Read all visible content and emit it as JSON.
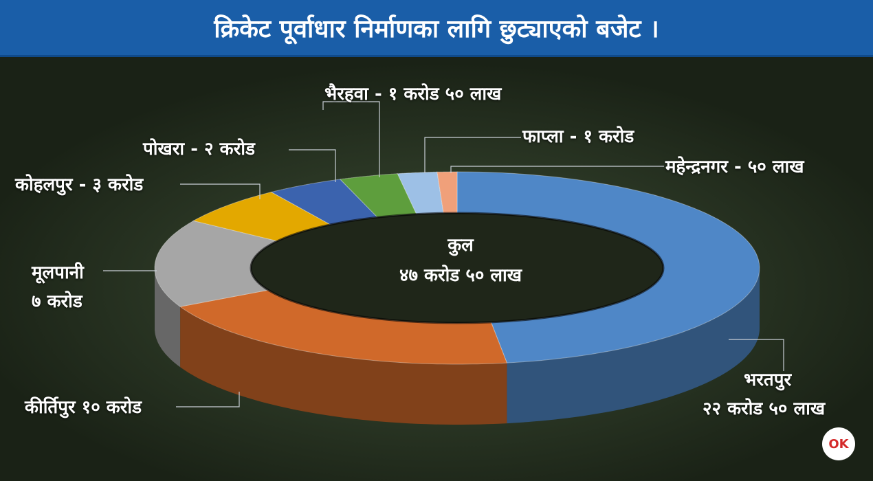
{
  "header": {
    "title": "क्रिकेट पूर्वाधार निर्माणका लागि छुट्याएको बजेट ।"
  },
  "center": {
    "line1": "कुल",
    "line2": "४७ करोड ५० लाख"
  },
  "logo": {
    "text": "OK"
  },
  "chart_data": {
    "type": "pie",
    "variant": "donut-3d",
    "title": "क्रिकेट पूर्वाधार निर्माणका लागि छुट्याएको बजेट ।",
    "total_label": "कुल ४७ करोड ५० लाख",
    "unit": "लाख",
    "slices": [
      {
        "label": "भरतपुर",
        "value_text": "२२ करोड ५० लाख",
        "value": 2250,
        "color": "#4f87c7"
      },
      {
        "label": "कीर्तिपुर",
        "value_text": "१० करोड",
        "value": 1000,
        "color": "#d0692a"
      },
      {
        "label": "मूलपानी",
        "value_text": "७ करोड",
        "value": 700,
        "color": "#a6a6a6"
      },
      {
        "label": "कोहलपुर",
        "value_text": "३ करोड",
        "value": 300,
        "color": "#e3a800"
      },
      {
        "label": "पोखरा",
        "value_text": "२ करोड",
        "value": 200,
        "color": "#3b63ae"
      },
      {
        "label": "भैरहवा",
        "value_text": "१ करोड ५० लाख",
        "value": 150,
        "color": "#5e9e3d"
      },
      {
        "label": "फाप्ला",
        "value_text": "१ करोड",
        "value": 100,
        "color": "#9dc0e6"
      },
      {
        "label": "महेन्द्रनगर",
        "value_text": "५० लाख",
        "value": 50,
        "color": "#f0a07a"
      }
    ]
  },
  "labels": {
    "bharatpur_name": "भरतपुर",
    "bharatpur_value": "२२ करोड ५० लाख",
    "kirtipur": "कीर्तिपुर १० करोड",
    "mulpani_name": "मूलपानी",
    "mulpani_value": "७ करोड",
    "kohalpur": "कोहलपुर - ३ करोड",
    "pokhara": "पोखरा - २ करोड",
    "bhairahawa": "भैरहवा - १ करोड ५० लाख",
    "phapla": "फाप्ला - १ करोड",
    "mahendranagar": "महेन्द्रनगर - ५० लाख"
  }
}
